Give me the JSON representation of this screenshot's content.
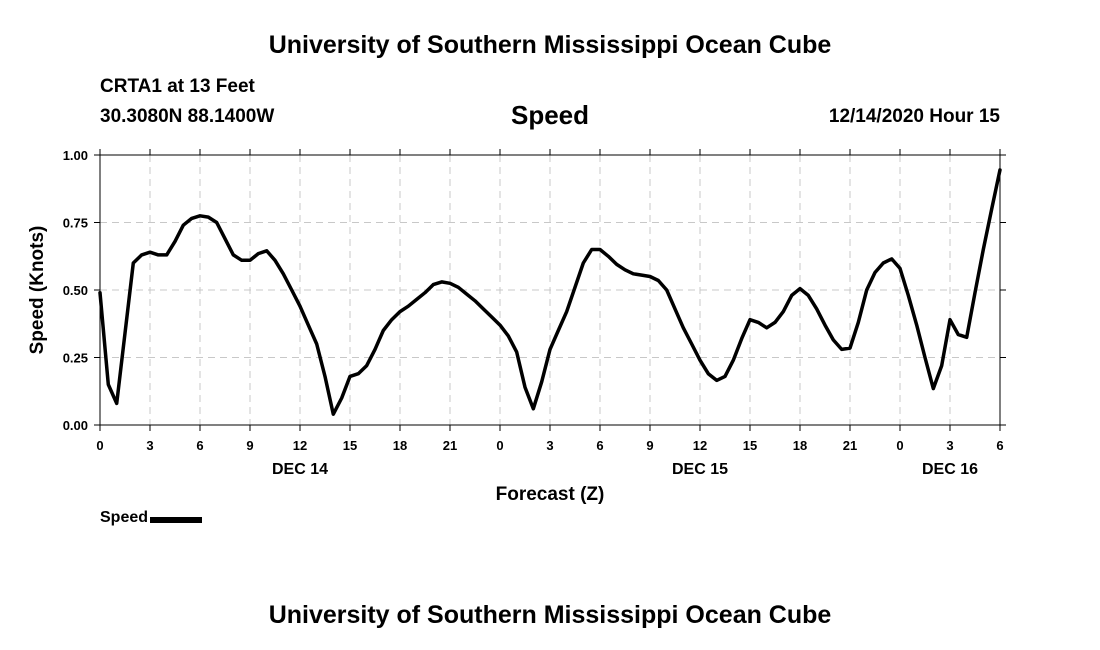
{
  "header": {
    "title": "University of Southern Mississippi Ocean Cube",
    "station": "CRTA1 at 13 Feet",
    "coordinates": "30.3080N 88.1400W",
    "variable": "Speed",
    "timestamp": "12/14/2020 Hour 15"
  },
  "footer": {
    "title": "University of Southern Mississippi Ocean Cube"
  },
  "legend": {
    "label": "Speed",
    "color": "#000000"
  },
  "chart_data": {
    "type": "line",
    "title": "Speed",
    "xlabel": "Forecast (Z)",
    "ylabel": "Speed (Knots)",
    "x_unit": "hours from Dec 14 00Z",
    "xlim": [
      0,
      54
    ],
    "ylim": [
      0,
      1.0
    ],
    "grid": true,
    "legend_position": "bottom-left",
    "x_ticks": [
      {
        "x": 0,
        "label": "0"
      },
      {
        "x": 3,
        "label": "3"
      },
      {
        "x": 6,
        "label": "6"
      },
      {
        "x": 9,
        "label": "9"
      },
      {
        "x": 12,
        "label": "12"
      },
      {
        "x": 15,
        "label": "15"
      },
      {
        "x": 18,
        "label": "18"
      },
      {
        "x": 21,
        "label": "21"
      },
      {
        "x": 24,
        "label": "0"
      },
      {
        "x": 27,
        "label": "3"
      },
      {
        "x": 30,
        "label": "6"
      },
      {
        "x": 33,
        "label": "9"
      },
      {
        "x": 36,
        "label": "12"
      },
      {
        "x": 39,
        "label": "15"
      },
      {
        "x": 42,
        "label": "18"
      },
      {
        "x": 45,
        "label": "21"
      },
      {
        "x": 48,
        "label": "0"
      },
      {
        "x": 51,
        "label": "3"
      },
      {
        "x": 54,
        "label": "6"
      }
    ],
    "y_ticks": [
      {
        "y": 0,
        "label": "0.00"
      },
      {
        "y": 0.25,
        "label": "0.25"
      },
      {
        "y": 0.5,
        "label": "0.50"
      },
      {
        "y": 0.75,
        "label": "0.75"
      },
      {
        "y": 1.0,
        "label": "1.00"
      }
    ],
    "date_labels": [
      {
        "x": 12,
        "label": "DEC 14"
      },
      {
        "x": 36,
        "label": "DEC 15"
      },
      {
        "x": 51,
        "label": "DEC 16"
      }
    ],
    "series": [
      {
        "name": "Speed",
        "color": "#000000",
        "x": [
          0,
          0.5,
          1,
          1.5,
          2,
          2.5,
          3,
          3.5,
          4,
          4.5,
          5,
          5.5,
          6,
          6.5,
          7,
          7.5,
          8,
          8.5,
          9,
          9.5,
          10,
          10.5,
          11,
          11.5,
          12,
          12.5,
          13,
          13.5,
          14,
          14.5,
          15,
          15.5,
          16,
          16.5,
          17,
          17.5,
          18,
          18.5,
          19,
          19.5,
          20,
          20.5,
          21,
          21.5,
          22,
          22.5,
          23,
          23.5,
          24,
          24.5,
          25,
          25.5,
          26,
          26.5,
          27,
          27.5,
          28,
          28.5,
          29,
          29.5,
          30,
          30.5,
          31,
          31.5,
          32,
          32.5,
          33,
          33.5,
          34,
          34.5,
          35,
          35.5,
          36,
          36.5,
          37,
          37.5,
          38,
          38.5,
          39,
          39.5,
          40,
          40.5,
          41,
          41.5,
          42,
          42.5,
          43,
          43.5,
          44,
          44.5,
          45,
          45.5,
          46,
          46.5,
          47,
          47.5,
          48,
          48.5,
          49,
          49.5,
          50,
          50.5,
          51,
          51.5,
          52,
          52.5,
          53,
          53.5,
          54
        ],
        "values": [
          0.49,
          0.15,
          0.08,
          0.34,
          0.6,
          0.63,
          0.64,
          0.63,
          0.63,
          0.68,
          0.74,
          0.765,
          0.775,
          0.77,
          0.75,
          0.69,
          0.63,
          0.61,
          0.61,
          0.635,
          0.645,
          0.61,
          0.56,
          0.5,
          0.44,
          0.37,
          0.3,
          0.18,
          0.04,
          0.1,
          0.18,
          0.19,
          0.22,
          0.28,
          0.35,
          0.39,
          0.42,
          0.44,
          0.465,
          0.49,
          0.52,
          0.53,
          0.525,
          0.51,
          0.485,
          0.46,
          0.43,
          0.4,
          0.37,
          0.33,
          0.27,
          0.14,
          0.06,
          0.16,
          0.28,
          0.35,
          0.42,
          0.51,
          0.6,
          0.65,
          0.65,
          0.625,
          0.595,
          0.575,
          0.56,
          0.555,
          0.55,
          0.535,
          0.5,
          0.43,
          0.36,
          0.3,
          0.24,
          0.19,
          0.165,
          0.18,
          0.24,
          0.32,
          0.39,
          0.38,
          0.36,
          0.38,
          0.42,
          0.48,
          0.505,
          0.48,
          0.43,
          0.37,
          0.315,
          0.28,
          0.285,
          0.38,
          0.5,
          0.565,
          0.6,
          0.615,
          0.58,
          0.48,
          0.37,
          0.25,
          0.135,
          0.22,
          0.39,
          0.335,
          0.325,
          0.49,
          0.65,
          0.8,
          0.945
        ]
      }
    ]
  }
}
